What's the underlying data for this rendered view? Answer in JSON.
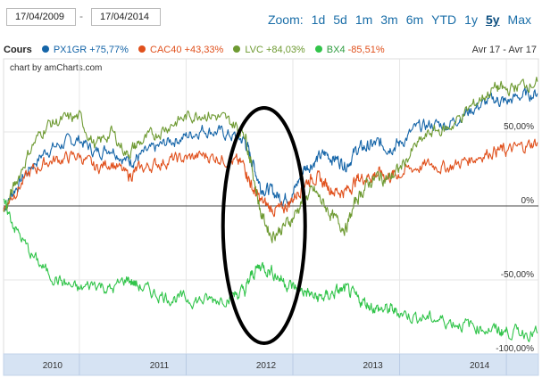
{
  "dates": {
    "start": "17/04/2009",
    "end": "17/04/2014",
    "separator": "-"
  },
  "zoom": {
    "label": "Zoom:",
    "options": [
      "1d",
      "5d",
      "1m",
      "3m",
      "6m",
      "YTD",
      "1y",
      "5y",
      "Max"
    ],
    "active": "5y"
  },
  "legend": {
    "title": "Cours",
    "entries": [
      {
        "name": "PX1GR",
        "change": "+75,77%",
        "color": "#1565a8"
      },
      {
        "name": "CAC40",
        "change": "+43,33%",
        "color": "#e0501c"
      },
      {
        "name": "LVC",
        "change": "+84,03%",
        "color": "#6e9a32"
      },
      {
        "name": "BX4",
        "change": "-85,51%",
        "color": "#31c44a"
      }
    ]
  },
  "range_label": "Avr 17 - Avr 17",
  "credit": "chart by amCharts.com",
  "colors": {
    "scrollbar": "#d6e3f3",
    "grid": "#e6e6e6",
    "annotation": "#000000"
  },
  "chart_data": {
    "type": "line",
    "x_axis": {
      "ticks": [
        "2010",
        "2011",
        "2012",
        "2013",
        "2014"
      ],
      "range": [
        "2009-04-17",
        "2014-04-17"
      ]
    },
    "y_axis": {
      "ticks": [
        "50,00%",
        "0%",
        "-50,00%",
        "-100,00%"
      ],
      "tick_values": [
        50,
        0,
        -50,
        -100
      ],
      "range": [
        -100,
        100
      ],
      "position": "right"
    },
    "grid": true,
    "annotation": "ellipse around late 2011",
    "series": [
      {
        "name": "PX1GR",
        "color": "#1565a8",
        "x": [
          2009.29,
          2009.4,
          2009.55,
          2009.7,
          2009.85,
          2010.0,
          2010.15,
          2010.3,
          2010.45,
          2010.55,
          2010.7,
          2010.85,
          2011.0,
          2011.15,
          2011.3,
          2011.45,
          2011.55,
          2011.62,
          2011.7,
          2011.8,
          2011.9,
          2012.0,
          2012.1,
          2012.2,
          2012.3,
          2012.4,
          2012.5,
          2012.6,
          2012.7,
          2012.8,
          2012.9,
          2013.0,
          2013.15,
          2013.3,
          2013.45,
          2013.6,
          2013.75,
          2013.9,
          2014.0,
          2014.15,
          2014.29
        ],
        "y": [
          -2,
          12,
          27,
          38,
          42,
          45,
          36,
          40,
          30,
          33,
          38,
          44,
          47,
          52,
          50,
          47,
          44,
          30,
          13,
          10,
          5,
          8,
          25,
          30,
          35,
          32,
          28,
          38,
          40,
          42,
          40,
          42,
          52,
          55,
          55,
          62,
          68,
          72,
          70,
          75,
          76
        ]
      },
      {
        "name": "CAC40",
        "color": "#e0501c",
        "x": [
          2009.29,
          2009.4,
          2009.55,
          2009.7,
          2009.85,
          2010.0,
          2010.15,
          2010.3,
          2010.45,
          2010.55,
          2010.7,
          2010.85,
          2011.0,
          2011.15,
          2011.3,
          2011.45,
          2011.55,
          2011.62,
          2011.7,
          2011.8,
          2011.9,
          2012.0,
          2012.1,
          2012.2,
          2012.3,
          2012.4,
          2012.5,
          2012.6,
          2012.7,
          2012.8,
          2012.9,
          2013.0,
          2013.15,
          2013.3,
          2013.45,
          2013.6,
          2013.75,
          2013.9,
          2014.0,
          2014.15,
          2014.29
        ],
        "y": [
          -2,
          10,
          23,
          30,
          32,
          34,
          25,
          30,
          20,
          24,
          28,
          31,
          32,
          34,
          33,
          30,
          27,
          12,
          3,
          -2,
          -3,
          5,
          15,
          20,
          15,
          10,
          10,
          18,
          20,
          22,
          20,
          22,
          26,
          28,
          26,
          30,
          34,
          38,
          37,
          40,
          43
        ]
      },
      {
        "name": "LVC",
        "color": "#6e9a32",
        "x": [
          2009.29,
          2009.4,
          2009.55,
          2009.7,
          2009.85,
          2010.0,
          2010.15,
          2010.3,
          2010.45,
          2010.55,
          2010.7,
          2010.85,
          2011.0,
          2011.15,
          2011.3,
          2011.45,
          2011.55,
          2011.62,
          2011.7,
          2011.8,
          2011.9,
          2012.0,
          2012.1,
          2012.2,
          2012.3,
          2012.4,
          2012.5,
          2012.6,
          2012.7,
          2012.8,
          2012.9,
          2013.0,
          2013.15,
          2013.3,
          2013.45,
          2013.6,
          2013.75,
          2013.9,
          2014.0,
          2014.15,
          2014.29
        ],
        "y": [
          -5,
          15,
          40,
          55,
          58,
          60,
          40,
          50,
          35,
          42,
          48,
          55,
          60,
          63,
          60,
          55,
          50,
          25,
          -5,
          -20,
          -15,
          -8,
          5,
          10,
          0,
          -10,
          -15,
          5,
          15,
          20,
          18,
          25,
          40,
          50,
          52,
          62,
          72,
          80,
          78,
          82,
          84
        ]
      },
      {
        "name": "BX4",
        "color": "#31c44a",
        "x": [
          2009.29,
          2009.4,
          2009.55,
          2009.7,
          2009.85,
          2010.0,
          2010.15,
          2010.3,
          2010.45,
          2010.55,
          2010.7,
          2010.85,
          2011.0,
          2011.15,
          2011.3,
          2011.45,
          2011.55,
          2011.62,
          2011.7,
          2011.8,
          2011.9,
          2012.0,
          2012.1,
          2012.2,
          2012.3,
          2012.4,
          2012.5,
          2012.6,
          2012.7,
          2012.8,
          2012.9,
          2013.0,
          2013.15,
          2013.3,
          2013.45,
          2013.6,
          2013.75,
          2013.9,
          2014.0,
          2014.15,
          2014.29
        ],
        "y": [
          2,
          -15,
          -33,
          -45,
          -52,
          -57,
          -52,
          -57,
          -49,
          -54,
          -59,
          -62,
          -63,
          -64,
          -63,
          -60,
          -58,
          -46,
          -40,
          -44,
          -50,
          -55,
          -57,
          -62,
          -62,
          -58,
          -57,
          -63,
          -66,
          -70,
          -70,
          -72,
          -75,
          -76,
          -78,
          -80,
          -82,
          -84,
          -85,
          -85,
          -86
        ]
      }
    ]
  }
}
